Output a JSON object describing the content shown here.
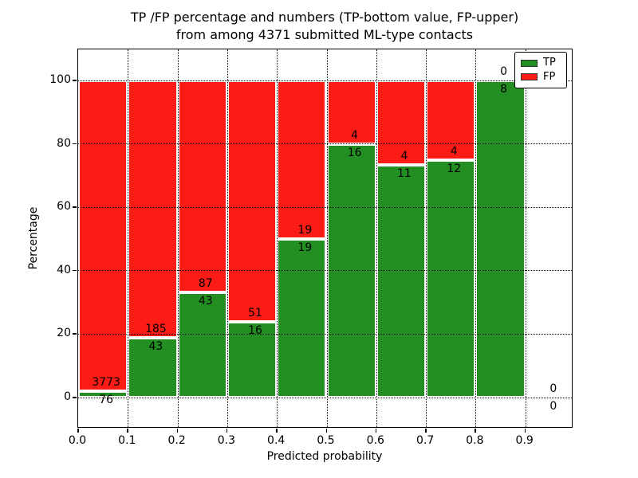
{
  "chart_data": {
    "type": "bar",
    "stacked": true,
    "title": {
      "line1": "TP /FP percentage and numbers (TP-bottom value, FP-upper)",
      "line2": "from among 4371 submitted ML-type contacts"
    },
    "xlabel": "Predicted probability",
    "ylabel": "Percentage",
    "x_ticks": [
      "0.0",
      "0.1",
      "0.2",
      "0.3",
      "0.4",
      "0.5",
      "0.6",
      "0.7",
      "0.8",
      "0.9"
    ],
    "y_ticks": [
      0,
      20,
      40,
      60,
      80,
      100
    ],
    "xlim": [
      0.0,
      1.0
    ],
    "ylim": [
      -10,
      109
    ],
    "grid": "dotted",
    "total_submitted": 4371,
    "colors": {
      "tp": "#238f23",
      "fp": "#fb1d15"
    },
    "legend": {
      "position": "upper right",
      "entries": [
        {
          "label": "TP",
          "series": "tp"
        },
        {
          "label": "FP",
          "series": "fp"
        }
      ]
    },
    "bins": [
      {
        "range": [
          0.0,
          0.1
        ],
        "tp": 76,
        "fp": 3773,
        "tp_percent": 1.97
      },
      {
        "range": [
          0.1,
          0.2
        ],
        "tp": 43,
        "fp": 185,
        "tp_percent": 18.86
      },
      {
        "range": [
          0.2,
          0.3
        ],
        "tp": 43,
        "fp": 87,
        "tp_percent": 33.08
      },
      {
        "range": [
          0.3,
          0.4
        ],
        "tp": 16,
        "fp": 51,
        "tp_percent": 23.88
      },
      {
        "range": [
          0.4,
          0.5
        ],
        "tp": 19,
        "fp": 19,
        "tp_percent": 50.0
      },
      {
        "range": [
          0.5,
          0.6
        ],
        "tp": 16,
        "fp": 4,
        "tp_percent": 80.0
      },
      {
        "range": [
          0.6,
          0.7
        ],
        "tp": 11,
        "fp": 4,
        "tp_percent": 73.33
      },
      {
        "range": [
          0.7,
          0.8
        ],
        "tp": 12,
        "fp": 4,
        "tp_percent": 75.0
      },
      {
        "range": [
          0.8,
          0.9
        ],
        "tp": 8,
        "fp": 0,
        "tp_percent": 100.0
      },
      {
        "range": [
          0.9,
          1.0
        ],
        "tp": 0,
        "fp": 0,
        "tp_percent": null
      }
    ]
  }
}
